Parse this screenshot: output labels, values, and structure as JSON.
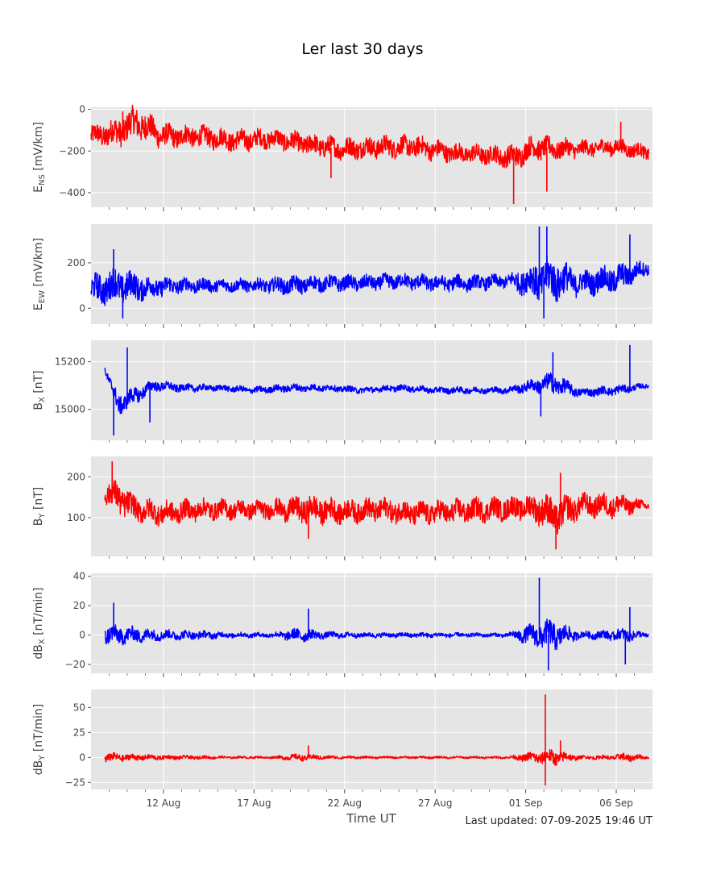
{
  "figure": {
    "title": "Ler last 30 days",
    "xlabel": "Time UT",
    "last_updated": "Last updated: 07-09-2025 19:46 UT"
  },
  "chart_data": [
    {
      "type": "line",
      "ylabel_main": "E",
      "ylabel_sub": "NS",
      "ylabel_unit": " [mV/km]",
      "color": "#ff0000",
      "ylim": [
        -470,
        10
      ],
      "yticks": [
        0,
        -200,
        -400
      ],
      "xlim": [
        "2025-08-08T00:00",
        "2025-09-08T00:00"
      ],
      "grid": true,
      "series": [
        {
          "x": [
            "2025-08-08T00:00",
            "2025-08-09T12:00",
            "2025-08-10T12:00",
            "2025-08-12T00:00",
            "2025-08-14T00:00",
            "2025-08-16T00:00",
            "2025-08-18T00:00",
            "2025-08-20T00:00",
            "2025-08-22T00:00",
            "2025-08-24T00:00",
            "2025-08-26T00:00",
            "2025-08-28T00:00",
            "2025-08-30T00:00",
            "2025-08-31T09:00",
            "2025-09-01T12:00",
            "2025-09-02T12:00",
            "2025-09-04T00:00",
            "2025-09-06T00:00",
            "2025-09-07T19:00"
          ],
          "y": [
            -130,
            -110,
            -60,
            -130,
            -130,
            -150,
            -140,
            -170,
            -190,
            -180,
            -180,
            -210,
            -220,
            -230,
            -180,
            -190,
            -190,
            -180,
            -210
          ],
          "amplitude": [
            45,
            60,
            70,
            50,
            45,
            45,
            40,
            45,
            45,
            45,
            45,
            40,
            40,
            50,
            50,
            45,
            35,
            35,
            30
          ]
        }
      ]
    },
    {
      "type": "line",
      "ylabel_main": "E",
      "ylabel_sub": "EW",
      "ylabel_unit": " [mV/km]",
      "color": "#0000ff",
      "ylim": [
        -70,
        370
      ],
      "yticks": [
        0,
        200
      ],
      "xlim": [
        "2025-08-08T00:00",
        "2025-09-08T00:00"
      ],
      "grid": true,
      "series": [
        {
          "x": [
            "2025-08-08T00:00",
            "2025-08-09T12:00",
            "2025-08-11T00:00",
            "2025-08-13T00:00",
            "2025-08-15T00:00",
            "2025-08-17T00:00",
            "2025-08-19T00:00",
            "2025-08-21T00:00",
            "2025-08-23T00:00",
            "2025-08-25T00:00",
            "2025-08-27T00:00",
            "2025-08-29T00:00",
            "2025-08-31T00:00",
            "2025-09-01T12:00",
            "2025-09-02T12:00",
            "2025-09-04T00:00",
            "2025-09-06T00:00",
            "2025-09-07T19:00"
          ],
          "y": [
            80,
            100,
            90,
            100,
            100,
            100,
            100,
            110,
            110,
            120,
            110,
            110,
            120,
            120,
            130,
            110,
            130,
            180
          ],
          "amplitude": [
            55,
            70,
            45,
            30,
            25,
            25,
            35,
            30,
            30,
            30,
            30,
            30,
            25,
            70,
            85,
            45,
            55,
            25
          ]
        }
      ]
    },
    {
      "type": "line",
      "ylabel_main": "B",
      "ylabel_sub": "X",
      "ylabel_unit": " [nT]",
      "color": "#0000ff",
      "ylim": [
        14870,
        15290
      ],
      "yticks": [
        15000,
        15200
      ],
      "xlim": [
        "2025-08-08T00:00",
        "2025-09-08T00:00"
      ],
      "grid": true,
      "series": [
        {
          "x": [
            "2025-08-08T18:00",
            "2025-08-09T12:00",
            "2025-08-10T12:00",
            "2025-08-11T12:00",
            "2025-08-13T00:00",
            "2025-08-15T00:00",
            "2025-08-17T00:00",
            "2025-08-19T00:00",
            "2025-08-21T00:00",
            "2025-08-23T00:00",
            "2025-08-25T00:00",
            "2025-08-27T00:00",
            "2025-08-29T00:00",
            "2025-08-31T00:00",
            "2025-09-01T12:00",
            "2025-09-02T12:00",
            "2025-09-04T00:00",
            "2025-09-06T00:00",
            "2025-09-07T19:00"
          ],
          "y": [
            15170,
            15020,
            15060,
            15100,
            15090,
            15090,
            15080,
            15090,
            15090,
            15080,
            15090,
            15080,
            15080,
            15080,
            15100,
            15110,
            15070,
            15080,
            15100
          ],
          "amplitude": [
            10,
            40,
            30,
            20,
            15,
            12,
            12,
            15,
            12,
            12,
            12,
            12,
            12,
            12,
            25,
            40,
            15,
            18,
            8
          ]
        }
      ]
    },
    {
      "type": "line",
      "ylabel_main": "B",
      "ylabel_sub": "Y",
      "ylabel_unit": " [nT]",
      "color": "#ff0000",
      "ylim": [
        5,
        250
      ],
      "yticks": [
        100,
        200
      ],
      "xlim": [
        "2025-08-08T00:00",
        "2025-09-08T00:00"
      ],
      "grid": true,
      "series": [
        {
          "x": [
            "2025-08-08T18:00",
            "2025-08-09T12:00",
            "2025-08-10T12:00",
            "2025-08-12T00:00",
            "2025-08-14T00:00",
            "2025-08-16T00:00",
            "2025-08-18T00:00",
            "2025-08-20T00:00",
            "2025-08-22T00:00",
            "2025-08-24T00:00",
            "2025-08-26T00:00",
            "2025-08-28T00:00",
            "2025-08-30T00:00",
            "2025-09-01T00:00",
            "2025-09-02T00:00",
            "2025-09-02T12:00",
            "2025-09-04T00:00",
            "2025-09-06T00:00",
            "2025-09-07T19:00"
          ],
          "y": [
            160,
            150,
            120,
            110,
            120,
            120,
            120,
            120,
            115,
            120,
            110,
            115,
            120,
            125,
            120,
            100,
            130,
            130,
            130
          ],
          "amplitude": [
            20,
            35,
            25,
            25,
            22,
            20,
            20,
            30,
            25,
            25,
            25,
            25,
            25,
            25,
            35,
            40,
            25,
            25,
            8
          ]
        }
      ]
    },
    {
      "type": "line",
      "ylabel_main": "dB",
      "ylabel_sub": "X",
      "ylabel_unit": " [nT/min]",
      "color": "#0000ff",
      "ylim": [
        -26,
        42
      ],
      "yticks": [
        40,
        20,
        0,
        -20
      ],
      "xlim": [
        "2025-08-08T00:00",
        "2025-09-08T00:00"
      ],
      "grid": true,
      "series": [
        {
          "x": [
            "2025-08-08T18:00",
            "2025-08-10T00:00",
            "2025-08-12T00:00",
            "2025-08-14T00:00",
            "2025-08-16T00:00",
            "2025-08-18T00:00",
            "2025-08-19T12:00",
            "2025-08-21T00:00",
            "2025-08-23T00:00",
            "2025-08-25T00:00",
            "2025-08-27T00:00",
            "2025-08-29T00:00",
            "2025-08-31T00:00",
            "2025-09-01T12:00",
            "2025-09-02T12:00",
            "2025-09-04T00:00",
            "2025-09-05T18:00",
            "2025-09-06T12:00",
            "2025-09-07T19:00"
          ],
          "y": [
            0,
            0,
            0,
            0,
            0,
            0,
            0,
            0,
            0,
            0,
            0,
            0,
            0,
            0,
            0,
            0,
            0,
            0,
            0
          ],
          "amplitude": [
            6,
            5,
            3,
            2.5,
            1.5,
            1.5,
            4,
            2,
            1.5,
            1.5,
            1.5,
            1.2,
            1.2,
            7,
            9,
            2,
            3,
            4,
            1
          ]
        }
      ]
    },
    {
      "type": "line",
      "ylabel_main": "dB",
      "ylabel_sub": "Y",
      "ylabel_unit": " [nT/min]",
      "color": "#ff0000",
      "ylim": [
        -32,
        68
      ],
      "yticks": [
        50,
        25,
        0,
        -25
      ],
      "xlim": [
        "2025-08-08T00:00",
        "2025-09-08T00:00"
      ],
      "grid": true,
      "series": [
        {
          "x": [
            "2025-08-08T18:00",
            "2025-08-10T00:00",
            "2025-08-12T00:00",
            "2025-08-14T00:00",
            "2025-08-16T00:00",
            "2025-08-18T00:00",
            "2025-08-19T12:00",
            "2025-08-21T00:00",
            "2025-08-23T00:00",
            "2025-08-25T00:00",
            "2025-08-27T00:00",
            "2025-08-29T00:00",
            "2025-08-31T00:00",
            "2025-09-01T12:00",
            "2025-09-02T12:00",
            "2025-09-04T00:00",
            "2025-09-05T18:00",
            "2025-09-06T12:00",
            "2025-09-07T19:00"
          ],
          "y": [
            0,
            0,
            0,
            0,
            0,
            0,
            0,
            0,
            0,
            0,
            0,
            0,
            0,
            0,
            0,
            0,
            0,
            0,
            0
          ],
          "amplitude": [
            4,
            3,
            2,
            1.5,
            1,
            1,
            3,
            1.5,
            1,
            1,
            1,
            1,
            1,
            5,
            7,
            1.5,
            2,
            4,
            1
          ]
        }
      ]
    }
  ],
  "x_axis": {
    "ticks": [
      {
        "x": "2025-08-12T00:00",
        "label": "12 Aug"
      },
      {
        "x": "2025-08-17T00:00",
        "label": "17 Aug"
      },
      {
        "x": "2025-08-22T00:00",
        "label": "22 Aug"
      },
      {
        "x": "2025-08-27T00:00",
        "label": "27 Aug"
      },
      {
        "x": "2025-09-01T00:00",
        "label": "01 Sep"
      },
      {
        "x": "2025-09-06T00:00",
        "label": "06 Sep"
      }
    ]
  },
  "spikes": [
    [
      {
        "x": "2025-08-21T06:00",
        "y": -330
      },
      {
        "x": "2025-08-31T08:00",
        "y": -455
      },
      {
        "x": "2025-09-02T04:00",
        "y": -395
      },
      {
        "x": "2025-08-09T18:00",
        "y": -10
      },
      {
        "x": "2025-09-06T06:00",
        "y": -60
      }
    ],
    [
      {
        "x": "2025-09-01T18:00",
        "y": 360
      },
      {
        "x": "2025-09-02T04:00",
        "y": 360
      },
      {
        "x": "2025-09-06T18:00",
        "y": 325
      },
      {
        "x": "2025-08-09T06:00",
        "y": 260
      },
      {
        "x": "2025-08-09T18:00",
        "y": -45
      },
      {
        "x": "2025-09-02T00:00",
        "y": -45
      }
    ],
    [
      {
        "x": "2025-08-09T06:00",
        "y": 14890
      },
      {
        "x": "2025-08-10T00:00",
        "y": 15260
      },
      {
        "x": "2025-08-11T06:00",
        "y": 14945
      },
      {
        "x": "2025-09-02T12:00",
        "y": 15240
      },
      {
        "x": "2025-09-06T18:00",
        "y": 15270
      },
      {
        "x": "2025-09-01T20:00",
        "y": 14970
      }
    ],
    [
      {
        "x": "2025-08-09T04:00",
        "y": 238
      },
      {
        "x": "2025-09-02T16:00",
        "y": 22
      },
      {
        "x": "2025-09-02T22:00",
        "y": 210
      },
      {
        "x": "2025-08-20T00:00",
        "y": 48
      }
    ],
    [
      {
        "x": "2025-09-01T18:00",
        "y": 39
      },
      {
        "x": "2025-08-09T06:00",
        "y": 22
      },
      {
        "x": "2025-09-02T06:00",
        "y": -24
      },
      {
        "x": "2025-09-06T12:00",
        "y": -20
      },
      {
        "x": "2025-08-20T00:00",
        "y": 18
      },
      {
        "x": "2025-09-06T18:00",
        "y": 19
      }
    ],
    [
      {
        "x": "2025-09-02T02:00",
        "y": 63
      },
      {
        "x": "2025-09-02T02:00",
        "y": -28
      },
      {
        "x": "2025-09-02T22:00",
        "y": 17
      },
      {
        "x": "2025-08-20T00:00",
        "y": 12
      }
    ]
  ]
}
